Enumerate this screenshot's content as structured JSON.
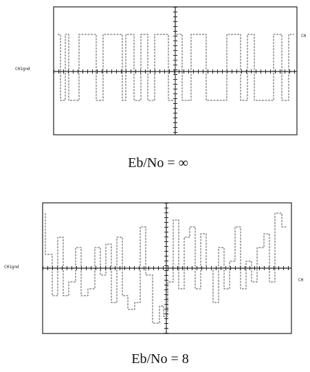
{
  "panels": [
    {
      "left_label": "CH1gnd",
      "right_label": "CH",
      "caption": "Eb/No = ∞"
    },
    {
      "left_label": "CH1gnd",
      "right_label": "CH",
      "caption": "Eb/No = 8"
    }
  ]
}
